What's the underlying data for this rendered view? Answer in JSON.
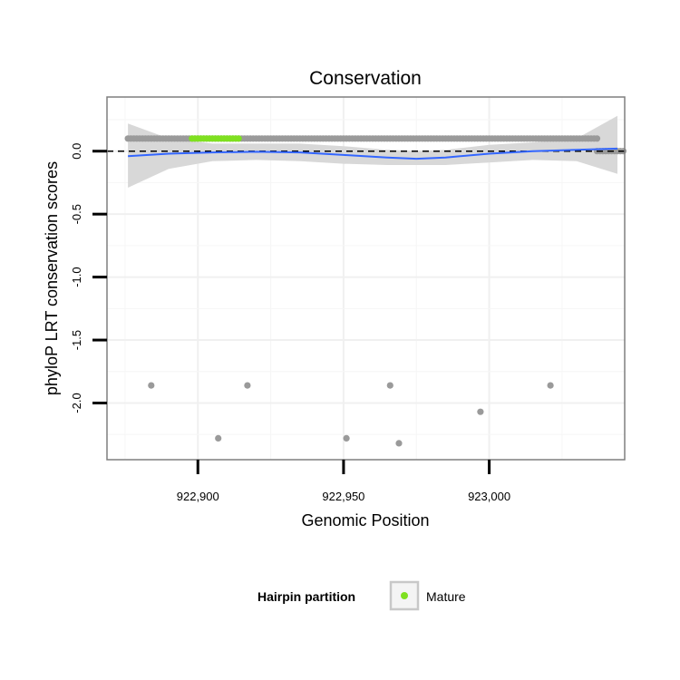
{
  "chart_data": {
    "type": "scatter",
    "title": "Conservation",
    "xlabel": "Genomic Position",
    "ylabel": "phyloP LRT conservation scores",
    "xlim": [
      922868.8,
      923046.5
    ],
    "ylim": [
      -2.45,
      0.43
    ],
    "x_ticks": [
      922900,
      922950,
      923000
    ],
    "x_tick_labels": [
      "922,900",
      "922,950",
      "923,000"
    ],
    "y_ticks": [
      0.0,
      -0.5,
      -1.0,
      -1.5,
      -2.0
    ],
    "y_tick_labels": [
      "0.0",
      "-0.5",
      "-1.0",
      "-1.5",
      "-2.0"
    ],
    "reference_line": {
      "y": 0,
      "style": "dashed",
      "color": "#000000"
    },
    "grid": true,
    "point_color": "#9a9a9a",
    "highlight_color": "#7fe020",
    "smooth_color": "#3366ff",
    "ribbon_color": "#d6d6d6",
    "band": {
      "x_start": 922876,
      "x_end": 923037,
      "y": 0.1
    },
    "highlight_band": {
      "x_start": 922898,
      "x_end": 922914,
      "y": 0.1
    },
    "baseline_segment": {
      "x_start": 923037,
      "x_end": 923046,
      "y": 0.0
    },
    "outliers": [
      {
        "x": 922884,
        "y": -1.86
      },
      {
        "x": 922907,
        "y": -2.28
      },
      {
        "x": 922917,
        "y": -1.86
      },
      {
        "x": 922951,
        "y": -2.28
      },
      {
        "x": 922966,
        "y": -1.86
      },
      {
        "x": 922969,
        "y": -2.32
      },
      {
        "x": 922997,
        "y": -2.07
      },
      {
        "x": 923021,
        "y": -1.86
      }
    ],
    "smooth": {
      "x": [
        922876,
        922890,
        922905,
        922920,
        922935,
        922950,
        922965,
        922975,
        922985,
        923000,
        923015,
        923030,
        923044
      ],
      "y": [
        -0.04,
        -0.02,
        -0.01,
        -0.005,
        -0.01,
        -0.03,
        -0.05,
        -0.06,
        -0.05,
        -0.02,
        0.0,
        0.01,
        0.02
      ],
      "lower": [
        -0.29,
        -0.14,
        -0.08,
        -0.07,
        -0.08,
        -0.1,
        -0.11,
        -0.11,
        -0.11,
        -0.09,
        -0.07,
        -0.08,
        -0.18
      ],
      "upper": [
        0.22,
        0.1,
        0.06,
        0.06,
        0.06,
        0.04,
        0.01,
        0.0,
        0.01,
        0.05,
        0.07,
        0.1,
        0.28
      ]
    },
    "legend": {
      "title": "Hairpin partition",
      "entries": [
        {
          "label": "Mature",
          "color": "#7fe020"
        }
      ],
      "position": "bottom"
    }
  }
}
